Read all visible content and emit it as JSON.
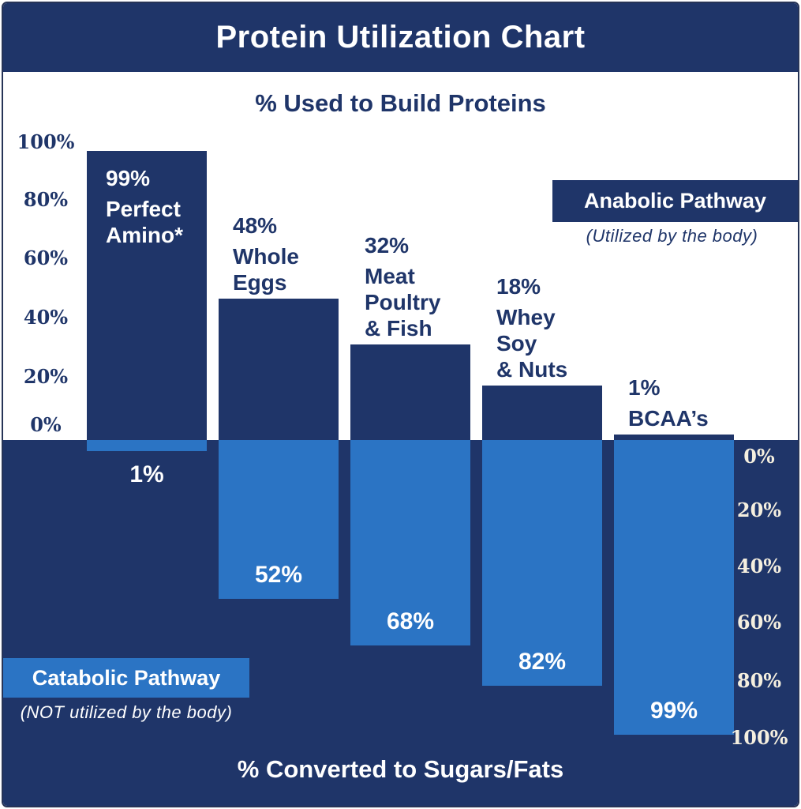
{
  "header": {
    "title": "Protein Utilization Chart"
  },
  "top_section": {
    "subtitle": "% Used to Build Proteins",
    "legend": {
      "label": "Anabolic Pathway",
      "note": "(Utilized by the body)"
    }
  },
  "bottom_section": {
    "legend": {
      "label": "Catabolic Pathway",
      "note": "(NOT utilized by the body)"
    },
    "axis_label": "% Converted to Sugars/Fats"
  },
  "colors": {
    "navy": "#1f3569",
    "light_blue": "#2b74c4",
    "cream_tick_text": "#f5efdf",
    "white": "#ffffff"
  },
  "chart_data": {
    "type": "bar",
    "subtype": "diverging",
    "title": "Protein Utilization Chart",
    "top_axis_title": "% Used to Build Proteins",
    "bottom_axis_title": "% Converted to Sugars/Fats",
    "categories": [
      "Perfect Amino*",
      "Whole Eggs",
      "Meat Poultry & Fish",
      "Whey Soy & Nuts",
      "BCAA’s"
    ],
    "series": [
      {
        "name": "Anabolic Pathway",
        "note": "(Utilized by the body)",
        "direction": "up",
        "color": "#1f3569",
        "values": [
          99,
          48,
          32,
          18,
          1
        ]
      },
      {
        "name": "Catabolic Pathway",
        "note": "(NOT utilized by the body)",
        "direction": "down",
        "color": "#2b74c4",
        "values": [
          1,
          52,
          68,
          82,
          99
        ]
      }
    ],
    "bars": [
      {
        "category": "Perfect Amino*",
        "category_lines": [
          "Perfect",
          "Amino*"
        ],
        "anabolic": 99,
        "anabolic_label": "99%",
        "catabolic": 1,
        "catabolic_label": "1%"
      },
      {
        "category": "Whole Eggs",
        "category_lines": [
          "Whole",
          "Eggs"
        ],
        "anabolic": 48,
        "anabolic_label": "48%",
        "catabolic": 52,
        "catabolic_label": "52%"
      },
      {
        "category": "Meat Poultry & Fish",
        "category_lines": [
          "Meat",
          "Poultry",
          "& Fish"
        ],
        "anabolic": 32,
        "anabolic_label": "32%",
        "catabolic": 68,
        "catabolic_label": "68%"
      },
      {
        "category": "Whey Soy & Nuts",
        "category_lines": [
          "Whey",
          "Soy",
          "& Nuts"
        ],
        "anabolic": 18,
        "anabolic_label": "18%",
        "catabolic": 82,
        "catabolic_label": "82%"
      },
      {
        "category": "BCAA’s",
        "category_lines": [
          "BCAA’s"
        ],
        "anabolic": 1,
        "anabolic_label": "1%",
        "catabolic": 99,
        "catabolic_label": "99%"
      }
    ],
    "left_axis_ticks": [
      "100%",
      "80%",
      "60%",
      "40%",
      "20%",
      "0%"
    ],
    "right_axis_ticks": [
      "0%",
      "20%",
      "40%",
      "60%",
      "80%",
      "100%"
    ],
    "ylim": [
      0,
      100
    ],
    "grid": false,
    "legend_position": {
      "anabolic": "top-right",
      "catabolic": "bottom-left"
    }
  }
}
